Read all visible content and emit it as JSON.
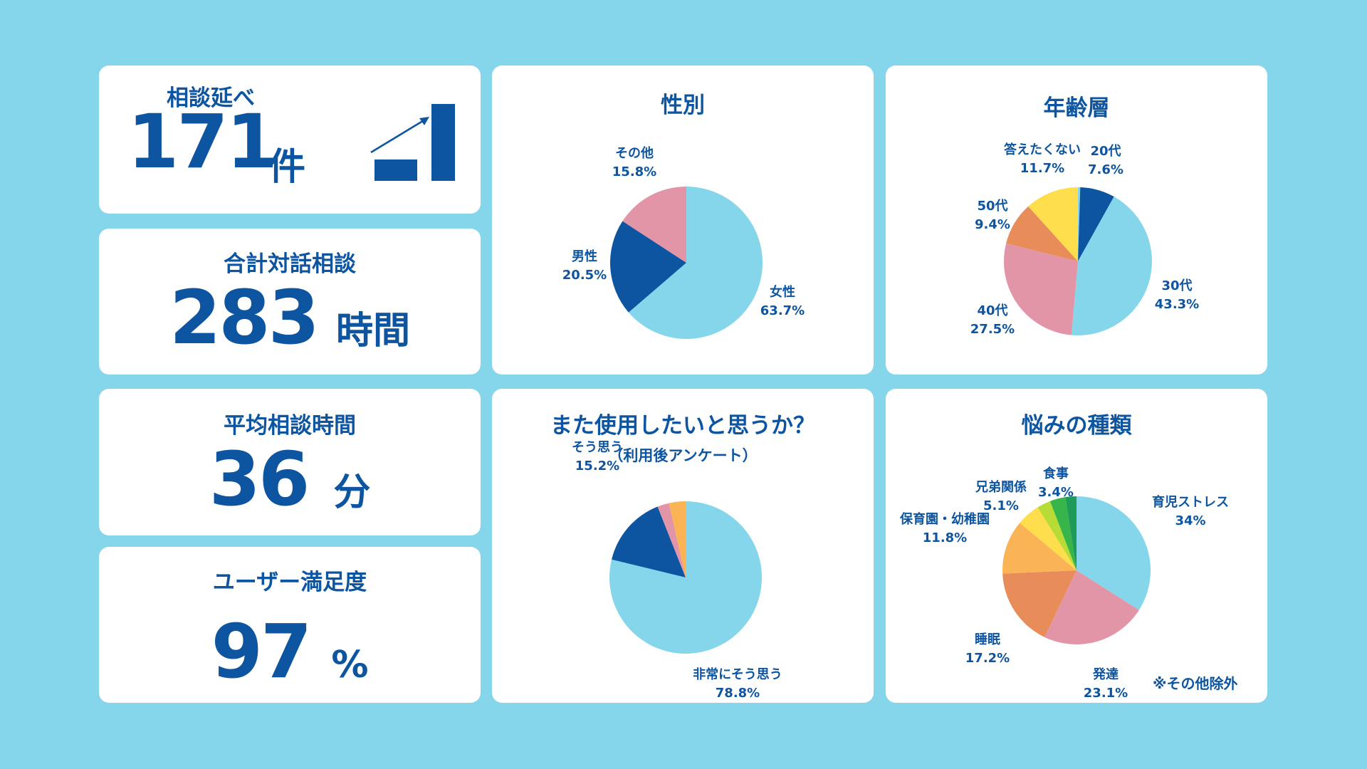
{
  "kpis": {
    "consultations": {
      "label": "相談延べ",
      "value": "171",
      "unit": "件"
    },
    "total_time": {
      "label": "合計対話相談",
      "value": "283",
      "unit": "時間"
    },
    "avg_time": {
      "label": "平均相談時間",
      "value": "36",
      "unit": "分"
    },
    "satisfaction": {
      "label": "ユーザー満足度",
      "value": "97",
      "unit": "%"
    }
  },
  "growth_icon": "bar-growth-arrow-icon",
  "colors": {
    "background": "#85d6ea",
    "card": "#ffffff",
    "text": "#0d55a0"
  },
  "note": "※その他除外",
  "chart_data": [
    {
      "type": "pie",
      "title": "性別",
      "subtitle": "",
      "slices": [
        {
          "label": "女性",
          "pct_label": "63.7%",
          "value": 63.7,
          "color": "#85d6ea"
        },
        {
          "label": "男性",
          "pct_label": "20.5%",
          "value": 20.5,
          "color": "#0d55a0"
        },
        {
          "label": "その他",
          "pct_label": "15.8%",
          "value": 15.8,
          "color": "#e295a6"
        }
      ]
    },
    {
      "type": "pie",
      "title": "年齢層",
      "subtitle": "",
      "slices": [
        {
          "label": "",
          "pct_label": "",
          "value": 0.5,
          "color": "#85d6ea"
        },
        {
          "label": "20代",
          "pct_label": "7.6%",
          "value": 7.6,
          "color": "#0d55a0"
        },
        {
          "label": "30代",
          "pct_label": "43.3%",
          "value": 43.3,
          "color": "#85d6ea"
        },
        {
          "label": "40代",
          "pct_label": "27.5%",
          "value": 27.5,
          "color": "#e295a6"
        },
        {
          "label": "50代",
          "pct_label": "9.4%",
          "value": 9.4,
          "color": "#e88c5a"
        },
        {
          "label": "答えたくない",
          "pct_label": "11.7%",
          "value": 11.7,
          "color": "#fede4c"
        }
      ]
    },
    {
      "type": "pie",
      "title": "また使用したいと思うか？",
      "subtitle": "（利用後アンケート）",
      "slices": [
        {
          "label": "非常にそう思う",
          "pct_label": "78.8%",
          "value": 78.8,
          "color": "#85d6ea"
        },
        {
          "label": "そう思う",
          "pct_label": "15.2%",
          "value": 15.2,
          "color": "#0d55a0"
        },
        {
          "label": "",
          "pct_label": "",
          "value": 2.5,
          "color": "#e295a6"
        },
        {
          "label": "",
          "pct_label": "",
          "value": 3.5,
          "color": "#fbb455"
        }
      ]
    },
    {
      "type": "pie",
      "title": "悩みの種類",
      "subtitle": "",
      "slices": [
        {
          "label": "育児ストレス",
          "pct_label": "34%",
          "value": 34.0,
          "color": "#85d6ea"
        },
        {
          "label": "発達",
          "pct_label": "23.1%",
          "value": 23.1,
          "color": "#e295a6"
        },
        {
          "label": "睡眠",
          "pct_label": "17.2%",
          "value": 17.2,
          "color": "#e88c5a"
        },
        {
          "label": "保育園・幼稚園",
          "pct_label": "11.8%",
          "value": 11.8,
          "color": "#fbb455"
        },
        {
          "label": "兄弟関係",
          "pct_label": "5.1%",
          "value": 5.1,
          "color": "#fede4c"
        },
        {
          "label": "",
          "pct_label": "",
          "value": 3.0,
          "color": "#b7dc35"
        },
        {
          "label": "食事",
          "pct_label": "3.4%",
          "value": 3.4,
          "color": "#38b54a"
        },
        {
          "label": "",
          "pct_label": "",
          "value": 2.4,
          "color": "#1f9b58"
        }
      ]
    }
  ]
}
